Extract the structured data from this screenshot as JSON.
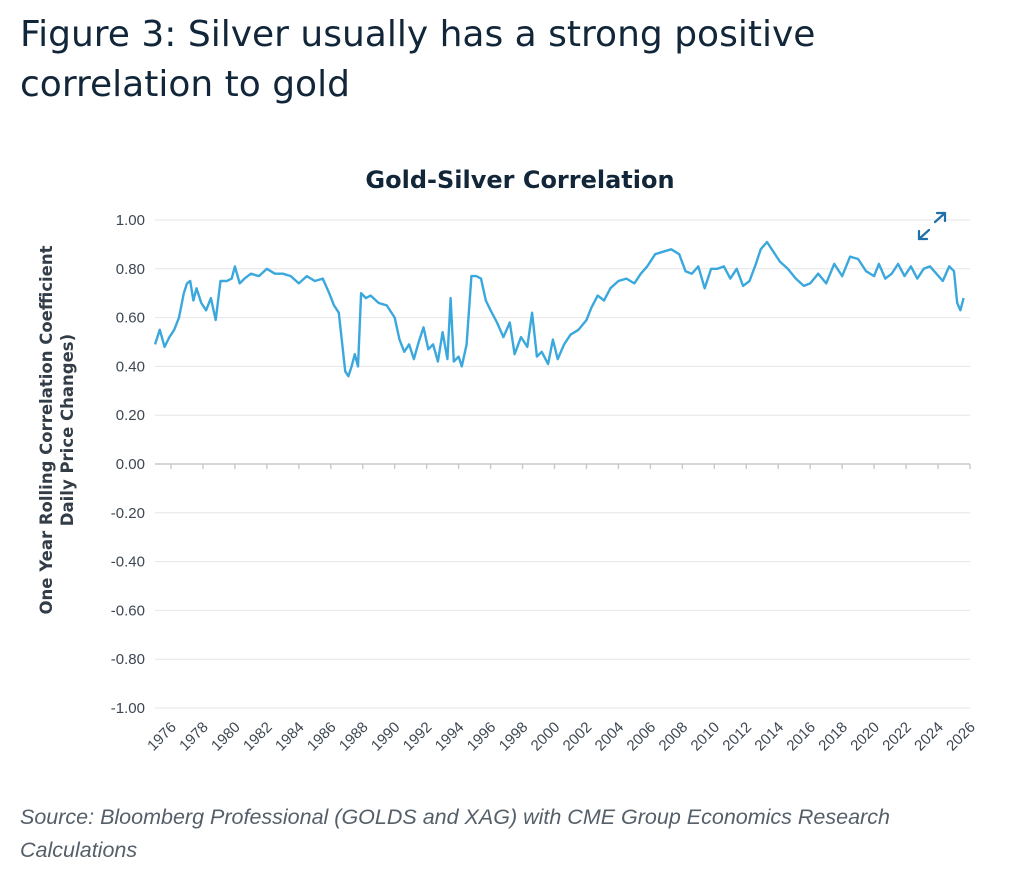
{
  "figure": {
    "title": "Figure 3: Silver usually has a strong positive correlation to gold",
    "source": "Source: Bloomberg Professional (GOLDS and XAG) with CME Group Economics Research Calculations"
  },
  "colors": {
    "line": "#3aa8dc",
    "grid": "#e6e6e6",
    "axis": "#c8c8c8",
    "icon": "#1f6fa8"
  },
  "icons": {
    "expand": "expand-icon"
  },
  "chart_data": {
    "type": "line",
    "title": "Gold-Silver Correlation",
    "ylabel_line1": "One Year Rolling Correlation Coefficient",
    "ylabel_line2": "Daily Price Changes)",
    "xlabel": "",
    "ylim": [
      -1.0,
      1.0
    ],
    "xlim": [
      1975.0,
      2026.0
    ],
    "yticks": [
      "1.00",
      "0.80",
      "0.60",
      "0.40",
      "0.20",
      "0.00",
      "-0.20",
      "-0.40",
      "-0.60",
      "-0.80",
      "-1.00"
    ],
    "xticks": [
      "1976",
      "1978",
      "1980",
      "1982",
      "1984",
      "1986",
      "1988",
      "1990",
      "1992",
      "1994",
      "1996",
      "1998",
      "2000",
      "2002",
      "2004",
      "2006",
      "2008",
      "2010",
      "2012",
      "2014",
      "2016",
      "2018",
      "2020",
      "2022",
      "2024",
      "2026"
    ],
    "grid": true,
    "series": [
      {
        "x": [
          1975.0,
          1975.3,
          1975.6,
          1975.9,
          1976.2,
          1976.5,
          1976.8,
          1977.0,
          1977.2,
          1977.4,
          1977.6,
          1977.9,
          1978.2,
          1978.5,
          1978.8,
          1979.1,
          1979.5,
          1979.8,
          1980.0,
          1980.3,
          1980.6,
          1981.0,
          1981.5,
          1982.0,
          1982.5,
          1983.0,
          1983.5,
          1984.0,
          1984.5,
          1985.0,
          1985.5,
          1985.9,
          1986.2,
          1986.5,
          1986.7,
          1986.9,
          1987.1,
          1987.3,
          1987.5,
          1987.7,
          1987.9,
          1988.2,
          1988.5,
          1989.0,
          1989.5,
          1990.0,
          1990.3,
          1990.6,
          1990.9,
          1991.2,
          1991.5,
          1991.8,
          1992.1,
          1992.4,
          1992.7,
          1993.0,
          1993.3,
          1993.5,
          1993.7,
          1994.0,
          1994.2,
          1994.5,
          1994.8,
          1995.1,
          1995.4,
          1995.7,
          1996.0,
          1996.4,
          1996.8,
          1997.2,
          1997.5,
          1997.9,
          1998.3,
          1998.6,
          1998.9,
          1999.2,
          1999.6,
          1999.9,
          2000.2,
          2000.6,
          2001.0,
          2001.5,
          2002.0,
          2002.3,
          2002.7,
          2003.1,
          2003.5,
          2004.0,
          2004.5,
          2005.0,
          2005.4,
          2005.8,
          2006.3,
          2006.8,
          2007.3,
          2007.8,
          2008.2,
          2008.6,
          2009.0,
          2009.4,
          2009.8,
          2010.2,
          2010.6,
          2011.0,
          2011.4,
          2011.8,
          2012.2,
          2012.6,
          2012.9,
          2013.3,
          2013.7,
          2014.1,
          2014.6,
          2015.1,
          2015.6,
          2016.0,
          2016.5,
          2017.0,
          2017.5,
          2018.0,
          2018.5,
          2019.0,
          2019.5,
          2020.0,
          2020.3,
          2020.7,
          2021.1,
          2021.5,
          2021.9,
          2022.3,
          2022.7,
          2023.1,
          2023.5,
          2023.9,
          2024.3,
          2024.7,
          2025.0,
          2025.2,
          2025.4,
          2025.6
        ],
        "y": [
          0.49,
          0.55,
          0.48,
          0.52,
          0.55,
          0.6,
          0.7,
          0.74,
          0.75,
          0.67,
          0.72,
          0.66,
          0.63,
          0.68,
          0.59,
          0.75,
          0.75,
          0.76,
          0.81,
          0.74,
          0.76,
          0.78,
          0.77,
          0.8,
          0.78,
          0.78,
          0.77,
          0.74,
          0.77,
          0.75,
          0.76,
          0.7,
          0.65,
          0.62,
          0.5,
          0.38,
          0.36,
          0.4,
          0.45,
          0.4,
          0.7,
          0.68,
          0.69,
          0.66,
          0.65,
          0.6,
          0.51,
          0.46,
          0.49,
          0.43,
          0.5,
          0.56,
          0.47,
          0.49,
          0.42,
          0.54,
          0.43,
          0.68,
          0.42,
          0.44,
          0.4,
          0.49,
          0.77,
          0.77,
          0.76,
          0.67,
          0.63,
          0.58,
          0.52,
          0.58,
          0.45,
          0.52,
          0.48,
          0.62,
          0.44,
          0.46,
          0.41,
          0.51,
          0.43,
          0.49,
          0.53,
          0.55,
          0.59,
          0.64,
          0.69,
          0.67,
          0.72,
          0.75,
          0.76,
          0.74,
          0.78,
          0.81,
          0.86,
          0.87,
          0.88,
          0.86,
          0.79,
          0.78,
          0.81,
          0.72,
          0.8,
          0.8,
          0.81,
          0.76,
          0.8,
          0.73,
          0.75,
          0.82,
          0.88,
          0.91,
          0.87,
          0.83,
          0.8,
          0.76,
          0.73,
          0.74,
          0.78,
          0.74,
          0.82,
          0.77,
          0.85,
          0.84,
          0.79,
          0.77,
          0.82,
          0.76,
          0.78,
          0.82,
          0.77,
          0.81,
          0.76,
          0.8,
          0.81,
          0.78,
          0.75,
          0.81,
          0.79,
          0.66,
          0.63,
          0.68
        ]
      }
    ]
  }
}
